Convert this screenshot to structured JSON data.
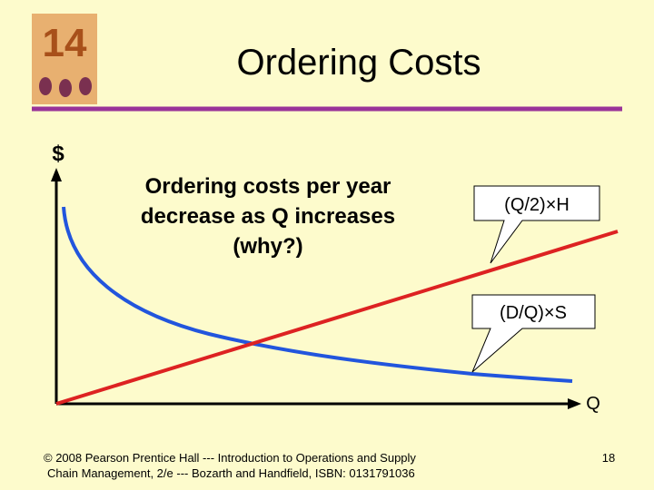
{
  "logo": {
    "chapter": "14"
  },
  "header": {
    "title": "Ordering Costs"
  },
  "axes": {
    "y_label": "$",
    "x_label": "Q"
  },
  "annotation": {
    "lines": [
      "Ordering costs per year",
      "decrease as Q increases",
      "(why?)"
    ]
  },
  "callouts": [
    {
      "label": "(Q/2)×H"
    },
    {
      "label": "(D/Q)×S"
    }
  ],
  "footer": {
    "lines": [
      "© 2008 Pearson Prentice Hall --- Introduction to Operations and Supply",
      "Chain Management, 2/e --- Bozarth and Handfield, ISBN: 0131791036"
    ],
    "page": "18"
  }
}
